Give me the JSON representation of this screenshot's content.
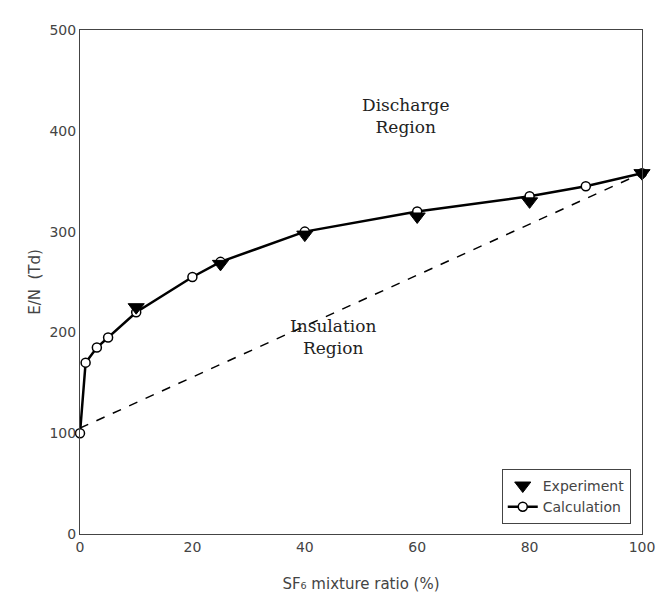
{
  "chart_data": {
    "type": "line",
    "x_label": "SF₆ mixture ratio (%)",
    "y_label": "E/N  (Td)",
    "series": [
      {
        "x": [
          0,
          100
        ],
        "values": [
          105,
          358
        ],
        "color": "black",
        "line_style": "dashed",
        "marker": "none"
      },
      {
        "name": "Calculation",
        "x": [
          0,
          1,
          3,
          5,
          10,
          20,
          25,
          40,
          60,
          80,
          90,
          100
        ],
        "values": [
          100,
          170,
          185,
          195,
          220,
          255,
          270,
          300,
          320,
          335,
          345,
          358
        ],
        "color": "black",
        "line_style": "solid",
        "marker": "circle"
      },
      {
        "name": "Experiment",
        "x": [
          10,
          25,
          40,
          60,
          80,
          100
        ],
        "values": [
          225,
          268,
          297,
          315,
          330,
          358
        ],
        "color": "black",
        "line_style": "none",
        "marker": "triangle-down"
      }
    ],
    "annotations": [
      {
        "text": "Discharge\nRegion",
        "x": 58,
        "y": 415
      },
      {
        "text": "Insulation\nRegion",
        "x": 45,
        "y": 195
      }
    ],
    "xlim": [
      0,
      100
    ],
    "ylim": [
      0,
      500
    ],
    "xticks": [
      0,
      20,
      40,
      60,
      80,
      100
    ],
    "yticks": [
      0,
      100,
      200,
      300,
      400,
      500
    ],
    "legend": "lower right",
    "grid": false
  }
}
